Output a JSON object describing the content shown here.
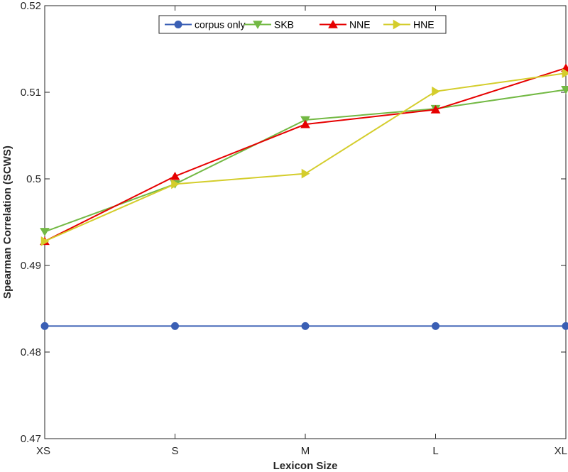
{
  "chart_data": {
    "type": "line",
    "title": "",
    "xlabel": "Lexicon Size",
    "ylabel": "Spearman Correlation (SCWS)",
    "categories": [
      "XS",
      "S",
      "M",
      "L",
      "XL"
    ],
    "ylim": [
      0.47,
      0.52
    ],
    "yticks": [
      0.47,
      0.48,
      0.49,
      0.5,
      0.51,
      0.52
    ],
    "ytick_labels": [
      "0.47",
      "0.48",
      "0.49",
      "0.5",
      "0.51",
      "0.52"
    ],
    "grid": false,
    "legend_position": "top-center",
    "series": [
      {
        "name": "corpus only",
        "color": "#3a5fb4",
        "marker": "circle",
        "values": [
          0.483,
          0.483,
          0.483,
          0.483,
          0.483
        ]
      },
      {
        "name": "SKB",
        "color": "#73b944",
        "marker": "triangle-down",
        "values": [
          0.4939,
          0.4994,
          0.5068,
          0.5081,
          0.5103
        ]
      },
      {
        "name": "NNE",
        "color": "#e60000",
        "marker": "triangle-up",
        "values": [
          0.4928,
          0.5003,
          0.5063,
          0.508,
          0.5128
        ]
      },
      {
        "name": "HNE",
        "color": "#d4cd2c",
        "marker": "triangle-right",
        "values": [
          0.4928,
          0.4994,
          0.5006,
          0.5101,
          0.5122
        ]
      }
    ]
  }
}
